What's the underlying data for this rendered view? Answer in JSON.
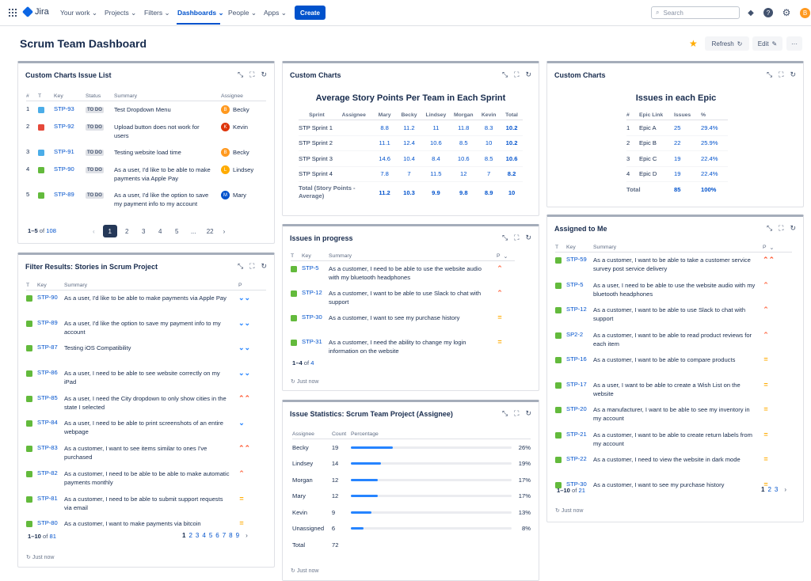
{
  "nav": {
    "logo": "Jira",
    "items": [
      "Your work",
      "Projects",
      "Filters",
      "Dashboards",
      "People",
      "Apps"
    ],
    "create": "Create",
    "search_placeholder": "Search",
    "avatar": "B"
  },
  "page": {
    "title": "Scrum Team Dashboard",
    "refresh": "Refresh",
    "edit": "Edit",
    "more": "···"
  },
  "colors": {
    "brand": "#0052cc",
    "story": "#63ba3c",
    "bug": "#e5493a",
    "highest": "#ff5630",
    "high": "#ff7452",
    "medium": "#ffab00",
    "low": "#2684ff"
  },
  "p1": {
    "title": "Custom Charts Issue List",
    "headers": [
      "#",
      "T",
      "Key",
      "Status",
      "Summary",
      "Assignee"
    ],
    "rows": [
      {
        "n": "1",
        "type": "task",
        "key": "STP-93",
        "status": "TO DO",
        "summary": "Test Dropdown Menu",
        "assignee": "Becky",
        "ini": "B",
        "color": "#ff991f"
      },
      {
        "n": "2",
        "type": "bug",
        "key": "STP-92",
        "status": "TO DO",
        "summary": "Upload button does not work for users",
        "assignee": "Kevin",
        "ini": "K",
        "color": "#de350b"
      },
      {
        "n": "3",
        "type": "task",
        "key": "STP-91",
        "status": "TO DO",
        "summary": "Testing website load time",
        "assignee": "Becky",
        "ini": "B",
        "color": "#ff991f"
      },
      {
        "n": "4",
        "type": "story",
        "key": "STP-90",
        "status": "TO DO",
        "summary": "As a user, I'd like to be able to make payments via Apple Pay",
        "assignee": "Lindsey",
        "ini": "L",
        "color": "#ffab00"
      },
      {
        "n": "5",
        "type": "story",
        "key": "STP-89",
        "status": "TO DO",
        "summary": "As a user, I'd like the option to save my payment info to my account",
        "assignee": "Mary",
        "ini": "M",
        "color": "#0052cc"
      }
    ],
    "range": "1–5",
    "of": "of",
    "total": "108",
    "pages": [
      "1",
      "2",
      "3",
      "4",
      "5",
      "...",
      "22"
    ]
  },
  "p2": {
    "title": "Filter Results: Stories in Scrum Project",
    "headers": [
      "T",
      "Key",
      "Summary",
      "P"
    ],
    "rows": [
      {
        "key": "STP-90",
        "summary": "As a user, I'd like to be able to make payments via Apple Pay",
        "p": "lowest"
      },
      {
        "key": "STP-89",
        "summary": "As a user, I'd like the option to save my payment info to my account",
        "p": "lowest"
      },
      {
        "key": "STP-87",
        "summary": "Testing iOS Compatibility",
        "p": "lowest"
      },
      {
        "key": "STP-86",
        "summary": "As a user, I need to be able to see website correctly on my iPad",
        "p": "lowest"
      },
      {
        "key": "STP-85",
        "summary": "As a user, I need the City dropdown to only show cities in the state I selected",
        "p": "highest"
      },
      {
        "key": "STP-84",
        "summary": "As a user, I need to be able to print screenshots of an entire webpage",
        "p": "low"
      },
      {
        "key": "STP-83",
        "summary": "As a customer, I want to see items similar to ones I've purchased",
        "p": "highest"
      },
      {
        "key": "STP-82",
        "summary": "As a customer, I need to be able to be able to make automatic payments monthly",
        "p": "high"
      },
      {
        "key": "STP-81",
        "summary": "As a customer, I need to be able to submit support requests via email",
        "p": "medium"
      },
      {
        "key": "STP-80",
        "summary": "As a customer, I want to make payments via bitcoin",
        "p": "medium"
      }
    ],
    "range": "1–10",
    "of": "of",
    "total": "81",
    "pages": [
      "1",
      "2",
      "3",
      "4",
      "5",
      "6",
      "7",
      "8",
      "9"
    ],
    "updated": "Just now"
  },
  "p3": {
    "title": "Custom Charts",
    "chart_title": "Average Story Points Per Team in Each Sprint",
    "headers": [
      "Sprint",
      "Assignee",
      "Mary",
      "Becky",
      "Lindsey",
      "Morgan",
      "Kevin",
      "Total"
    ],
    "rows": [
      {
        "sprint": "STP Sprint 1",
        "vals": [
          "8.8",
          "11.2",
          "11",
          "11.8",
          "8.3"
        ],
        "total": "10.2"
      },
      {
        "sprint": "STP Sprint 2",
        "vals": [
          "11.1",
          "12.4",
          "10.6",
          "8.5",
          "10"
        ],
        "total": "10.2"
      },
      {
        "sprint": "STP Sprint 3",
        "vals": [
          "14.6",
          "10.4",
          "8.4",
          "10.6",
          "8.5"
        ],
        "total": "10.6"
      },
      {
        "sprint": "STP Sprint 4",
        "vals": [
          "7.8",
          "7",
          "11.5",
          "12",
          "7"
        ],
        "total": "8.2"
      }
    ],
    "total_label": "Total (Story Points - Average)",
    "totals": [
      "11.2",
      "10.3",
      "9.9",
      "9.8",
      "8.9"
    ],
    "grand": "10"
  },
  "p4": {
    "title": "Custom Charts",
    "chart_title": "Issues in each Epic",
    "headers": [
      "#",
      "Epic Link",
      "Issues",
      "%"
    ],
    "rows": [
      {
        "n": "1",
        "epic": "Epic A",
        "issues": "25",
        "pct": "29.4%"
      },
      {
        "n": "2",
        "epic": "Epic B",
        "issues": "22",
        "pct": "25.9%"
      },
      {
        "n": "3",
        "epic": "Epic C",
        "issues": "19",
        "pct": "22.4%"
      },
      {
        "n": "4",
        "epic": "Epic D",
        "issues": "19",
        "pct": "22.4%"
      }
    ],
    "total_label": "Total",
    "total_issues": "85",
    "total_pct": "100%"
  },
  "p5": {
    "title": "Issues in progress",
    "headers": [
      "T",
      "Key",
      "Summary",
      "P"
    ],
    "rows": [
      {
        "key": "STP-5",
        "summary": "As a customer, I need to be able to use the website audio with my bluetooth headphones",
        "p": "high"
      },
      {
        "key": "STP-12",
        "summary": "As a customer, I want to be able to use Slack to chat with support",
        "p": "high"
      },
      {
        "key": "STP-30",
        "summary": "As a customer, I want to see my purchase history",
        "p": "medium"
      },
      {
        "key": "STP-31",
        "summary": "As a customer, I need the ability to change my login information on the website",
        "p": "medium"
      }
    ],
    "range": "1–4",
    "of": "of",
    "total": "4",
    "updated": "Just now"
  },
  "p6": {
    "title": "Issue Statistics: Scrum Team Project (Assignee)",
    "headers": [
      "Assignee",
      "Count",
      "Percentage"
    ],
    "rows": [
      {
        "name": "Becky",
        "count": "19",
        "pct": "26%",
        "frac": 0.26
      },
      {
        "name": "Lindsey",
        "count": "14",
        "pct": "19%",
        "frac": 0.19
      },
      {
        "name": "Morgan",
        "count": "12",
        "pct": "17%",
        "frac": 0.17
      },
      {
        "name": "Mary",
        "count": "12",
        "pct": "17%",
        "frac": 0.17
      },
      {
        "name": "Kevin",
        "count": "9",
        "pct": "13%",
        "frac": 0.13
      },
      {
        "name": "Unassigned",
        "count": "6",
        "pct": "8%",
        "frac": 0.08
      }
    ],
    "total_label": "Total",
    "total": "72",
    "updated": "Just now"
  },
  "p7": {
    "title": "Assigned to Me",
    "headers": [
      "T",
      "Key",
      "Summary",
      "P"
    ],
    "rows": [
      {
        "key": "STP-59",
        "summary": "As a customer, I want to be able to take a customer service survey post service delivery",
        "p": "highest"
      },
      {
        "key": "STP-5",
        "summary": "As a user, I need to be able to use the website audio with my bluetooth headphones",
        "p": "high"
      },
      {
        "key": "STP-12",
        "summary": "As a customer, I want to be able to use Slack to chat with support",
        "p": "high"
      },
      {
        "key": "SP2-2",
        "summary": "As a customer, I want to be able to read product reviews for each item",
        "p": "high"
      },
      {
        "key": "STP-16",
        "summary": "As a customer, I want to be able to compare products",
        "p": "medium"
      },
      {
        "key": "STP-17",
        "summary": "As a user, I want to be able to create a Wish List on the website",
        "p": "medium"
      },
      {
        "key": "STP-20",
        "summary": "As a manufacturer, I want to be able to see my inventory in my account",
        "p": "medium"
      },
      {
        "key": "STP-21",
        "summary": "As a customer, I want to be able to create return labels from my account",
        "p": "medium"
      },
      {
        "key": "STP-22",
        "summary": "As a customer, I need to view the website in dark mode",
        "p": "medium"
      },
      {
        "key": "STP-30",
        "summary": "As a customer, I want to see my purchase history",
        "p": "medium"
      }
    ],
    "range": "1–10",
    "of": "of",
    "total": "21",
    "pages": [
      "1",
      "2",
      "3"
    ],
    "updated": "Just now"
  }
}
